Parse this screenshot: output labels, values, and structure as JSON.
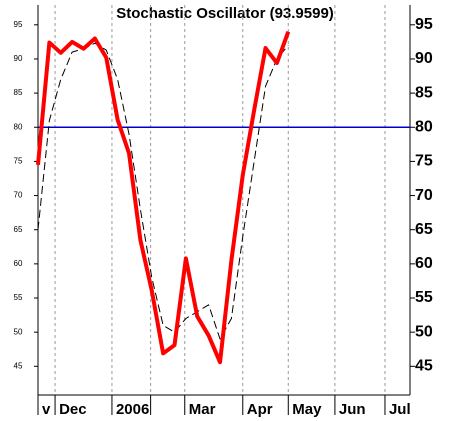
{
  "chart_data": {
    "type": "line",
    "title": "Stochastic Oscillator (93.9599)",
    "x": [
      0,
      1,
      2,
      3,
      4,
      5,
      6,
      7,
      8,
      9,
      10,
      11,
      12,
      13,
      14,
      15,
      16,
      17,
      18,
      19,
      20,
      21,
      22
    ],
    "series": [
      {
        "color": "#ff0000",
        "values": [
          74.5,
          92.4,
          90.9,
          92.5,
          91.5,
          93,
          90.2,
          81.1,
          76.2,
          63.5,
          56.1,
          46.9,
          48.1,
          60.8,
          52.3,
          49.5,
          45.6,
          60.5,
          73,
          82.5,
          91.6,
          89.4,
          94
        ]
      },
      {
        "color": "#000000",
        "dashed": true,
        "values": [
          65,
          81,
          87,
          91,
          91.5,
          92.3,
          91.3,
          87,
          79,
          68,
          58,
          51,
          50,
          52,
          53,
          54,
          49,
          52,
          64,
          75,
          86,
          90,
          92
        ]
      }
    ],
    "reference_line": {
      "value": 80,
      "color": "#0000cc"
    },
    "xlim": [
      0,
      32.7
    ],
    "xticks": [
      {
        "value": 0,
        "label": "v"
      },
      {
        "value": 1.5,
        "label": "Dec"
      },
      {
        "value": 6.5,
        "label": "2006"
      },
      {
        "value": 9.9,
        "label": null
      },
      {
        "value": 12.9,
        "label": "Mar"
      },
      {
        "value": 18,
        "label": "Apr"
      },
      {
        "value": 22,
        "label": "May"
      },
      {
        "value": 26.1,
        "label": "Jun"
      },
      {
        "value": 30.5,
        "label": "Jul"
      }
    ],
    "ylim": [
      40.8,
      97.9
    ],
    "yticks": [
      45,
      50,
      55,
      60,
      65,
      70,
      75,
      80,
      85,
      90,
      95
    ],
    "grid": true
  }
}
